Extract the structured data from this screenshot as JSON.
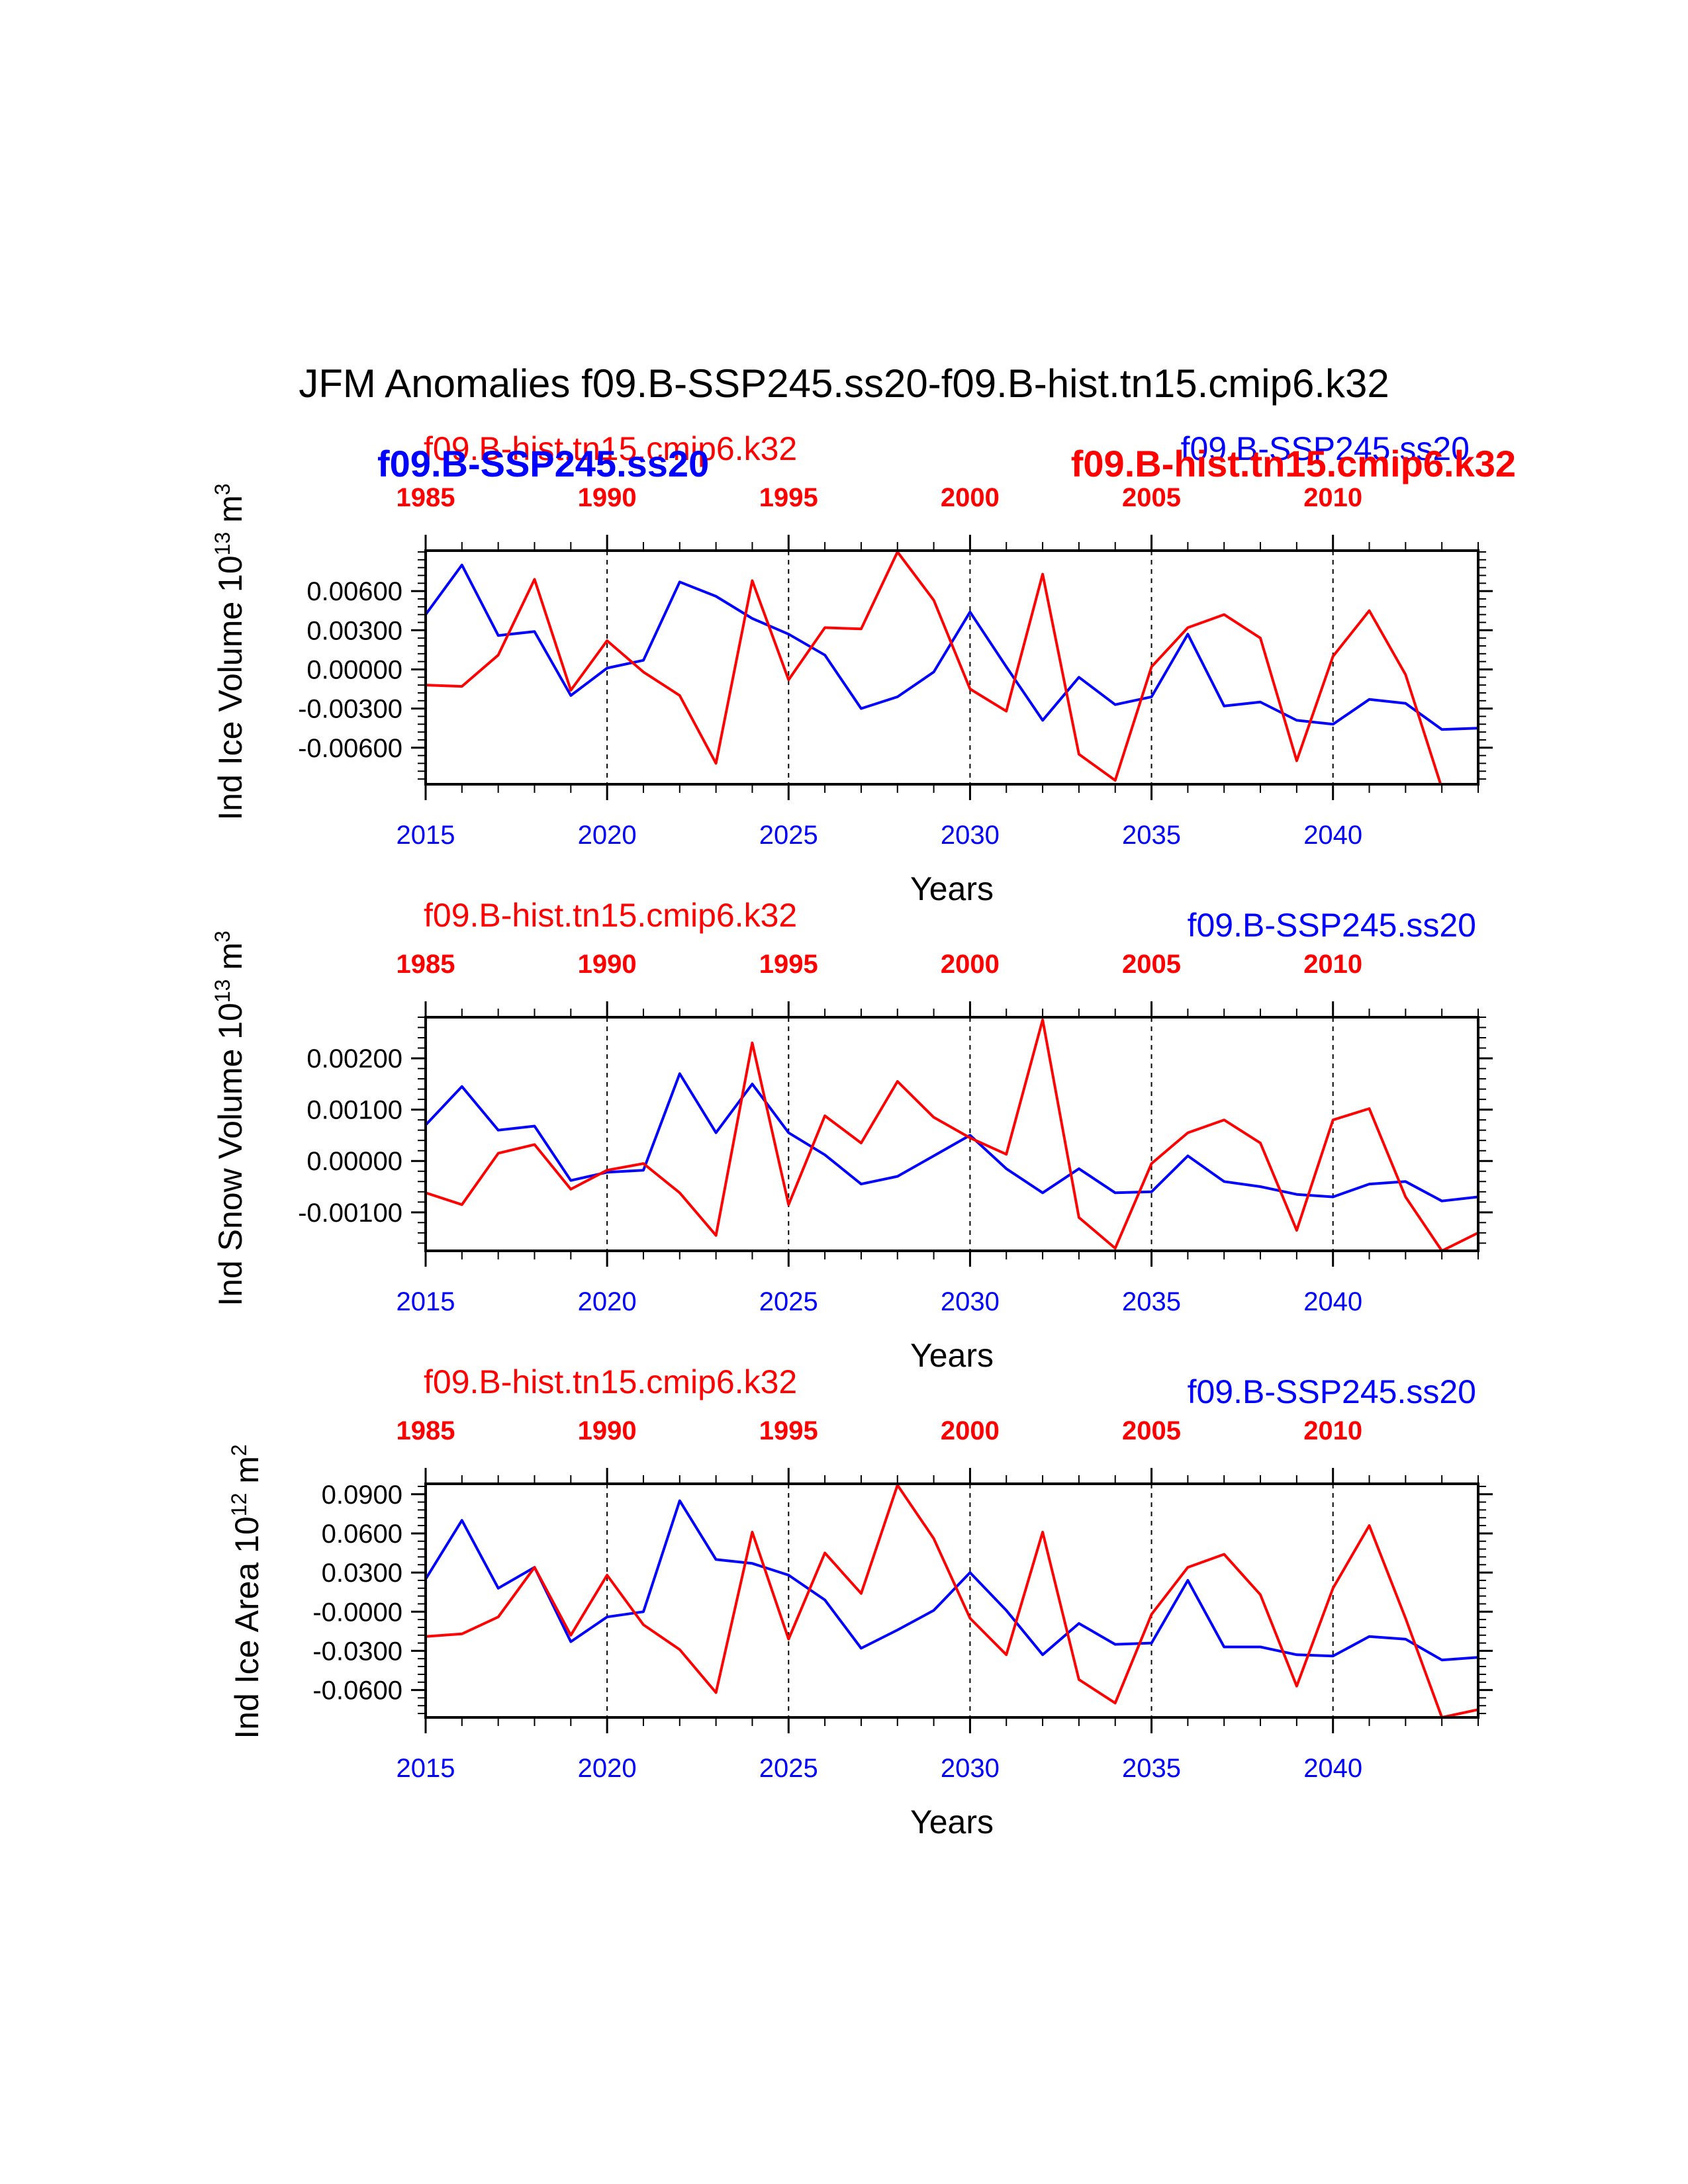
{
  "title": "JFM Anomalies f09.B-SSP245.ss20-f09.B-hist.tn15.cmip6.k32",
  "colors": {
    "ssp": "#0000ff",
    "hist": "#ff0000",
    "axis": "#000000"
  },
  "chart_data": [
    {
      "type": "line",
      "ylabel": "Ind Ice Volume 10",
      "ylabel_sup": "13",
      "ylabel_unit": " m",
      "ylabel_unit_sup": "3",
      "xlabel": "Years",
      "ylim": [
        -0.0088,
        0.0091
      ],
      "yticks": [
        0.006,
        0.003,
        0.0,
        -0.003,
        -0.006
      ],
      "ytick_labels": [
        "0.00600",
        "0.00300",
        "0.00000",
        "-0.00300",
        "-0.00600"
      ],
      "minor_ytick_step": 0.0006,
      "xlim": [
        2015,
        2044
      ],
      "bottom_ticks": [
        2015,
        2020,
        2025,
        2030,
        2035,
        2040
      ],
      "top_ticks": [
        "1985",
        "1990",
        "1995",
        "2000",
        "2005",
        "2010"
      ],
      "grid_x": [
        2020,
        2025,
        2030,
        2035,
        2040
      ],
      "label_hist": "f09.B-hist.tn15.cmip6.k32",
      "label_ssp": "f09.B-SSP245.ss20",
      "overlay_labels": {
        "left_bold": "f09.B-SSP245.ss20",
        "right_bold": "f09.B-hist.tn15.cmip6.k32"
      },
      "series": [
        {
          "name": "f09.B-SSP245.ss20",
          "x": [
            2015,
            2016,
            2017,
            2018,
            2019,
            2020,
            2021,
            2022,
            2023,
            2024,
            2025,
            2026,
            2027,
            2028,
            2029,
            2030,
            2031,
            2032,
            2033,
            2034,
            2035,
            2036,
            2037,
            2038,
            2039,
            2040,
            2041,
            2042,
            2043,
            2044
          ],
          "values": [
            0.0042,
            0.008,
            0.0026,
            0.0029,
            -0.002,
            0.0001,
            0.0007,
            0.0067,
            0.0056,
            0.0039,
            0.0027,
            0.0011,
            -0.003,
            -0.0021,
            -0.0002,
            0.0044,
            0.0002,
            -0.0039,
            -0.0006,
            -0.0027,
            -0.0021,
            0.0027,
            -0.0028,
            -0.0025,
            -0.0039,
            -0.0042,
            -0.0023,
            -0.0026,
            -0.0046,
            -0.0045
          ]
        },
        {
          "name": "f09.B-hist.tn15.cmip6.k32",
          "x": [
            2015,
            2016,
            2017,
            2018,
            2019,
            2020,
            2021,
            2022,
            2023,
            2024,
            2025,
            2026,
            2027,
            2028,
            2029,
            2030,
            2031,
            2032,
            2033,
            2034,
            2035,
            2036,
            2037,
            2038,
            2039,
            2040,
            2041,
            2042,
            2043,
            2044
          ],
          "values": [
            -0.0012,
            -0.0013,
            0.0011,
            0.0069,
            -0.0016,
            0.0022,
            -0.0002,
            -0.002,
            -0.0072,
            0.0068,
            -0.0008,
            0.0032,
            0.0031,
            0.009,
            0.0053,
            -0.0015,
            -0.0032,
            0.0073,
            -0.0065,
            -0.0085,
            0.0002,
            0.0032,
            0.0042,
            0.0024,
            -0.007,
            0.001,
            0.0045,
            -0.0004,
            -0.0091,
            -0.0089
          ]
        }
      ]
    },
    {
      "type": "line",
      "ylabel": "Ind Snow Volume 10",
      "ylabel_sup": "13",
      "ylabel_unit": " m",
      "ylabel_unit_sup": "3",
      "xlabel": "Years",
      "ylim": [
        -0.00175,
        0.0028
      ],
      "yticks": [
        0.002,
        0.001,
        0.0,
        -0.001
      ],
      "ytick_labels": [
        "0.00200",
        "0.00100",
        "0.00000",
        "-0.00100"
      ],
      "minor_ytick_step": 0.0002,
      "xlim": [
        2015,
        2044
      ],
      "bottom_ticks": [
        2015,
        2020,
        2025,
        2030,
        2035,
        2040
      ],
      "top_ticks": [
        "1985",
        "1990",
        "1995",
        "2000",
        "2005",
        "2010"
      ],
      "grid_x": [
        2020,
        2025,
        2030,
        2035,
        2040
      ],
      "label_hist": "f09.B-hist.tn15.cmip6.k32",
      "label_ssp": "f09.B-SSP245.ss20",
      "series": [
        {
          "name": "f09.B-SSP245.ss20",
          "x": [
            2015,
            2016,
            2017,
            2018,
            2019,
            2020,
            2021,
            2022,
            2023,
            2024,
            2025,
            2026,
            2027,
            2028,
            2029,
            2030,
            2031,
            2032,
            2033,
            2034,
            2035,
            2036,
            2037,
            2038,
            2039,
            2040,
            2041,
            2042,
            2043,
            2044
          ],
          "values": [
            0.0007,
            0.00145,
            0.0006,
            0.00068,
            -0.00038,
            -0.00022,
            -0.00018,
            0.0017,
            0.00055,
            0.0015,
            0.00055,
            0.00012,
            -0.00045,
            -0.0003,
            0.0001,
            0.0005,
            -0.00015,
            -0.00062,
            -0.00015,
            -0.00062,
            -0.0006,
            0.0001,
            -0.0004,
            -0.0005,
            -0.00065,
            -0.0007,
            -0.00045,
            -0.0004,
            -0.00078,
            -0.0007
          ]
        },
        {
          "name": "f09.B-hist.tn15.cmip6.k32",
          "x": [
            2015,
            2016,
            2017,
            2018,
            2019,
            2020,
            2021,
            2022,
            2023,
            2024,
            2025,
            2026,
            2027,
            2028,
            2029,
            2030,
            2031,
            2032,
            2033,
            2034,
            2035,
            2036,
            2037,
            2038,
            2039,
            2040,
            2041,
            2042,
            2043,
            2044
          ],
          "values": [
            -0.00062,
            -0.00085,
            0.00015,
            0.00032,
            -0.00055,
            -0.00018,
            -5e-05,
            -0.00062,
            -0.00145,
            0.0023,
            -0.00085,
            0.00088,
            0.00035,
            0.00155,
            0.00085,
            0.00045,
            0.00013,
            0.00275,
            -0.0011,
            -0.0017,
            -5e-05,
            0.00055,
            0.0008,
            0.00035,
            -0.00135,
            0.0008,
            0.00102,
            -0.0007,
            -0.00175,
            -0.0014
          ]
        }
      ]
    },
    {
      "type": "line",
      "ylabel": "Ind Ice Area 10",
      "ylabel_sup": "12",
      "ylabel_unit": " m",
      "ylabel_unit_sup": "2",
      "xlabel": "Years",
      "ylim": [
        -0.081,
        0.098
      ],
      "yticks": [
        0.09,
        0.06,
        0.03,
        0.0,
        -0.03,
        -0.06
      ],
      "ytick_labels": [
        "0.0900",
        "0.0600",
        "0.0300",
        "-0.0000",
        "-0.0300",
        "-0.0600"
      ],
      "minor_ytick_step": 0.006,
      "xlim": [
        2015,
        2044
      ],
      "bottom_ticks": [
        2015,
        2020,
        2025,
        2030,
        2035,
        2040
      ],
      "top_ticks": [
        "1985",
        "1990",
        "1995",
        "2000",
        "2005",
        "2010"
      ],
      "grid_x": [
        2020,
        2025,
        2030,
        2035,
        2040
      ],
      "label_hist": "f09.B-hist.tn15.cmip6.k32",
      "label_ssp": "f09.B-SSP245.ss20",
      "series": [
        {
          "name": "f09.B-SSP245.ss20",
          "x": [
            2015,
            2016,
            2017,
            2018,
            2019,
            2020,
            2021,
            2022,
            2023,
            2024,
            2025,
            2026,
            2027,
            2028,
            2029,
            2030,
            2031,
            2032,
            2033,
            2034,
            2035,
            2036,
            2037,
            2038,
            2039,
            2040,
            2041,
            2042,
            2043,
            2044
          ],
          "values": [
            0.025,
            0.07,
            0.018,
            0.034,
            -0.023,
            -0.004,
            0.0,
            0.085,
            0.04,
            0.037,
            0.028,
            0.009,
            -0.028,
            -0.014,
            0.001,
            0.03,
            0.001,
            -0.033,
            -0.009,
            -0.025,
            -0.024,
            0.024,
            -0.027,
            -0.027,
            -0.033,
            -0.034,
            -0.019,
            -0.021,
            -0.037,
            -0.035
          ]
        },
        {
          "name": "f09.B-hist.tn15.cmip6.k32",
          "x": [
            2015,
            2016,
            2017,
            2018,
            2019,
            2020,
            2021,
            2022,
            2023,
            2024,
            2025,
            2026,
            2027,
            2028,
            2029,
            2030,
            2031,
            2032,
            2033,
            2034,
            2035,
            2036,
            2037,
            2038,
            2039,
            2040,
            2041,
            2042,
            2043,
            2044
          ],
          "values": [
            -0.019,
            -0.017,
            -0.004,
            0.034,
            -0.018,
            0.028,
            -0.01,
            -0.029,
            -0.062,
            0.061,
            -0.021,
            0.045,
            0.014,
            0.097,
            0.056,
            -0.005,
            -0.033,
            0.061,
            -0.052,
            -0.07,
            -0.002,
            0.034,
            0.044,
            0.013,
            -0.057,
            0.018,
            0.066,
            -0.005,
            -0.081,
            -0.075
          ]
        }
      ]
    }
  ]
}
